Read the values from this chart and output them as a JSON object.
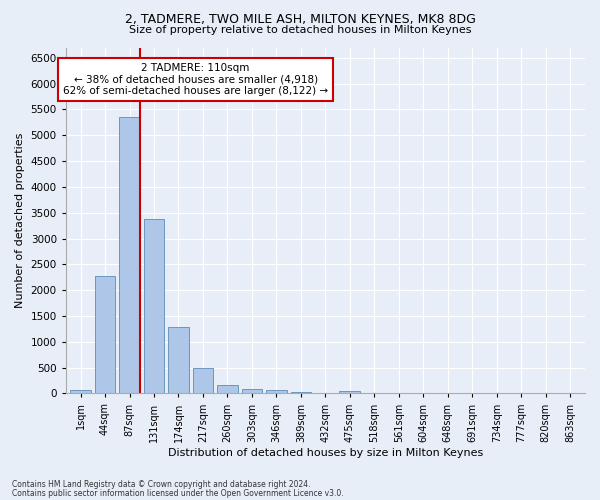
{
  "title1": "2, TADMERE, TWO MILE ASH, MILTON KEYNES, MK8 8DG",
  "title2": "Size of property relative to detached houses in Milton Keynes",
  "xlabel": "Distribution of detached houses by size in Milton Keynes",
  "ylabel": "Number of detached properties",
  "bin_labels": [
    "1sqm",
    "44sqm",
    "87sqm",
    "131sqm",
    "174sqm",
    "217sqm",
    "260sqm",
    "303sqm",
    "346sqm",
    "389sqm",
    "432sqm",
    "475sqm",
    "518sqm",
    "561sqm",
    "604sqm",
    "648sqm",
    "691sqm",
    "734sqm",
    "777sqm",
    "820sqm",
    "863sqm"
  ],
  "bar_values": [
    75,
    2270,
    5350,
    3380,
    1290,
    485,
    160,
    95,
    60,
    30,
    15,
    55,
    0,
    0,
    0,
    0,
    0,
    0,
    0,
    0,
    0
  ],
  "bar_color": "#aec6e8",
  "bar_edge_color": "#5b8db8",
  "vline_color": "#cc0000",
  "annotation_text": "2 TADMERE: 110sqm\n← 38% of detached houses are smaller (4,918)\n62% of semi-detached houses are larger (8,122) →",
  "annotation_box_color": "#ffffff",
  "annotation_box_edge": "#cc0000",
  "ylim": [
    0,
    6700
  ],
  "yticks": [
    0,
    500,
    1000,
    1500,
    2000,
    2500,
    3000,
    3500,
    4000,
    4500,
    5000,
    5500,
    6000,
    6500
  ],
  "footer1": "Contains HM Land Registry data © Crown copyright and database right 2024.",
  "footer2": "Contains public sector information licensed under the Open Government Licence v3.0.",
  "bg_color": "#e8eef8",
  "plot_bg_color": "#e8eef8"
}
